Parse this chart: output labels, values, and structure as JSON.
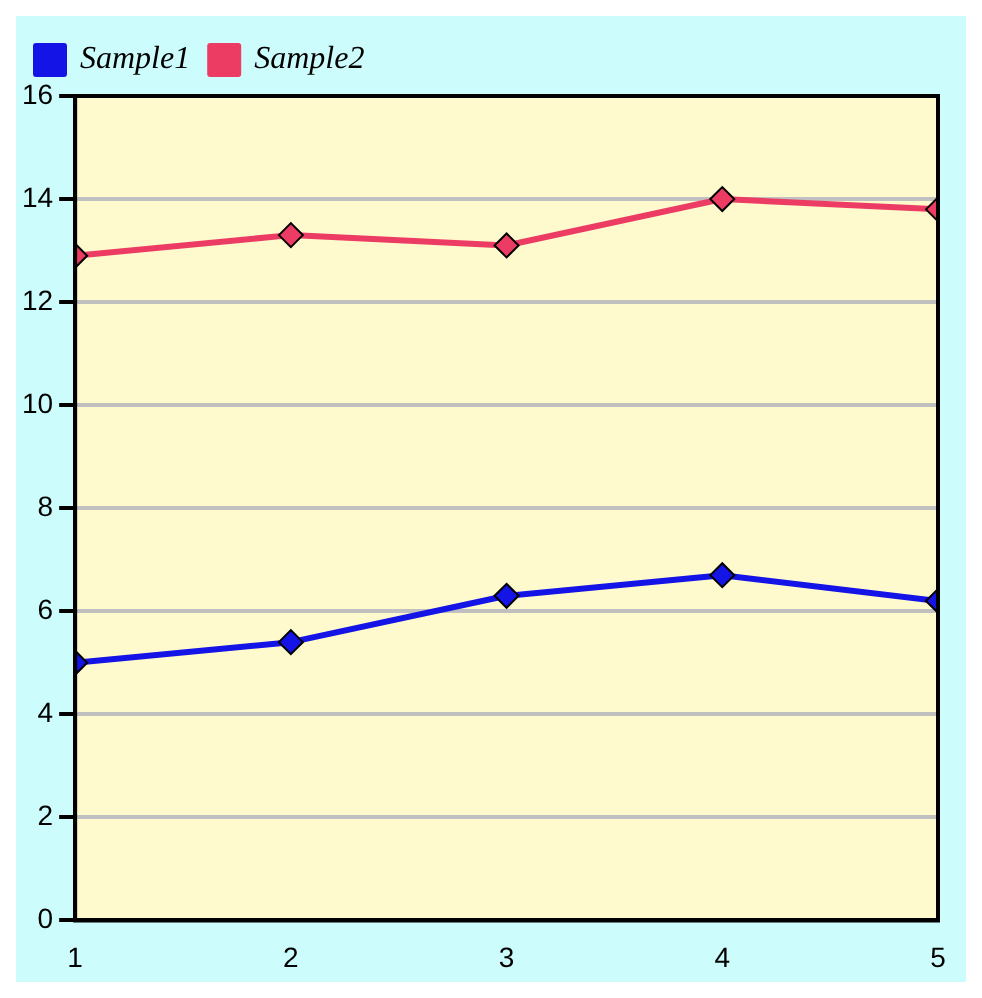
{
  "chart_data": {
    "type": "line",
    "x": [
      1,
      2,
      3,
      4,
      5
    ],
    "series": [
      {
        "name": "Sample1",
        "color": "#1414e6",
        "values": [
          5.0,
          5.4,
          6.3,
          6.7,
          6.2
        ]
      },
      {
        "name": "Sample2",
        "color": "#ec3c64",
        "values": [
          12.9,
          13.3,
          13.1,
          14.0,
          13.8
        ]
      }
    ],
    "xlim": [
      1,
      5
    ],
    "xticks": [
      1,
      2,
      3,
      4,
      5
    ],
    "ylim": [
      0,
      16
    ],
    "yticks": [
      0,
      2,
      4,
      6,
      8,
      10,
      12,
      14,
      16
    ],
    "grid": "y",
    "legend": "top left",
    "marker": "diamond",
    "line_style": "solid"
  }
}
